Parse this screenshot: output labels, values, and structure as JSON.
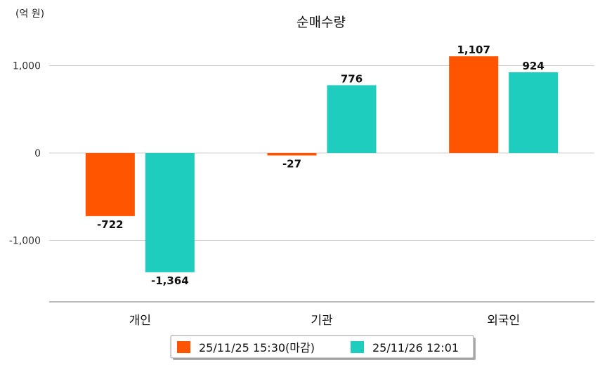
{
  "chart_data": {
    "type": "bar",
    "title": "순매수량",
    "unit_label": "(억 원)",
    "categories": [
      "개인",
      "기관",
      "외국인"
    ],
    "series": [
      {
        "name": "25/11/25 15:30(마감)",
        "color": "#FF5500",
        "values": [
          -722,
          -27,
          1107
        ],
        "labels": [
          "-722",
          "-27",
          "1,107"
        ]
      },
      {
        "name": "25/11/26 12:01",
        "color": "#1ECDBE",
        "values": [
          -1364,
          776,
          924
        ],
        "labels": [
          "-1,364",
          "776",
          "924"
        ]
      }
    ],
    "yticks": [
      {
        "value": 1000,
        "label": "1,000"
      },
      {
        "value": 0,
        "label": "0"
      },
      {
        "value": -1000,
        "label": "-1,000"
      }
    ],
    "ylim": [
      -1700,
      1300
    ],
    "grid": true,
    "legend_position": "bottom"
  }
}
